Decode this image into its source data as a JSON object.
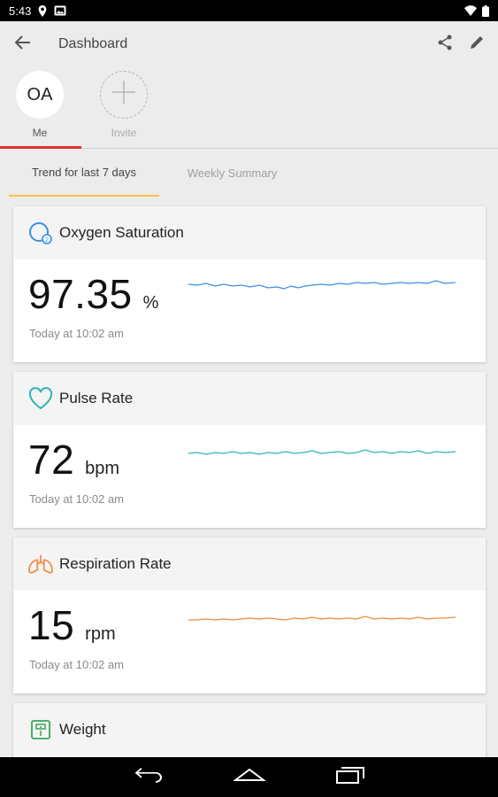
{
  "status_bar": {
    "time": "5:43",
    "icons_left": [
      "location-icon",
      "photo-icon"
    ],
    "icons_right": [
      "wifi-icon",
      "battery-icon"
    ]
  },
  "app_bar": {
    "title": "Dashboard",
    "back_icon": "arrow-left-icon",
    "actions": [
      "share-icon",
      "edit-icon"
    ]
  },
  "profiles": {
    "me": {
      "initials": "OA",
      "label": "Me"
    },
    "invite": {
      "label": "Invite"
    }
  },
  "tabs": {
    "trend": "Trend for last 7 days",
    "weekly": "Weekly Summary",
    "active": "trend",
    "active_indicator_color": "#f4c542"
  },
  "cards": {
    "oxygen": {
      "title": "Oxygen Saturation",
      "value": "97.35",
      "unit": "%",
      "timestamp": "Today at 10:02 am",
      "color": "#3a8ee6",
      "icon": "oxygen-saturation-icon"
    },
    "pulse": {
      "title": "Pulse Rate",
      "value": "72",
      "unit": "bpm",
      "timestamp": "Today at 10:02 am",
      "color": "#2fb3b3",
      "icon": "heart-icon"
    },
    "respiration": {
      "title": "Respiration Rate",
      "value": "15",
      "unit": "rpm",
      "timestamp": "Today at 10:02 am",
      "color": "#f08a3e",
      "icon": "lungs-icon"
    },
    "weight": {
      "title": "Weight",
      "color": "#3aa657",
      "icon": "scale-icon"
    }
  },
  "nav_bar": {
    "buttons": [
      "back-nav-icon",
      "home-nav-icon",
      "recents-nav-icon"
    ]
  }
}
